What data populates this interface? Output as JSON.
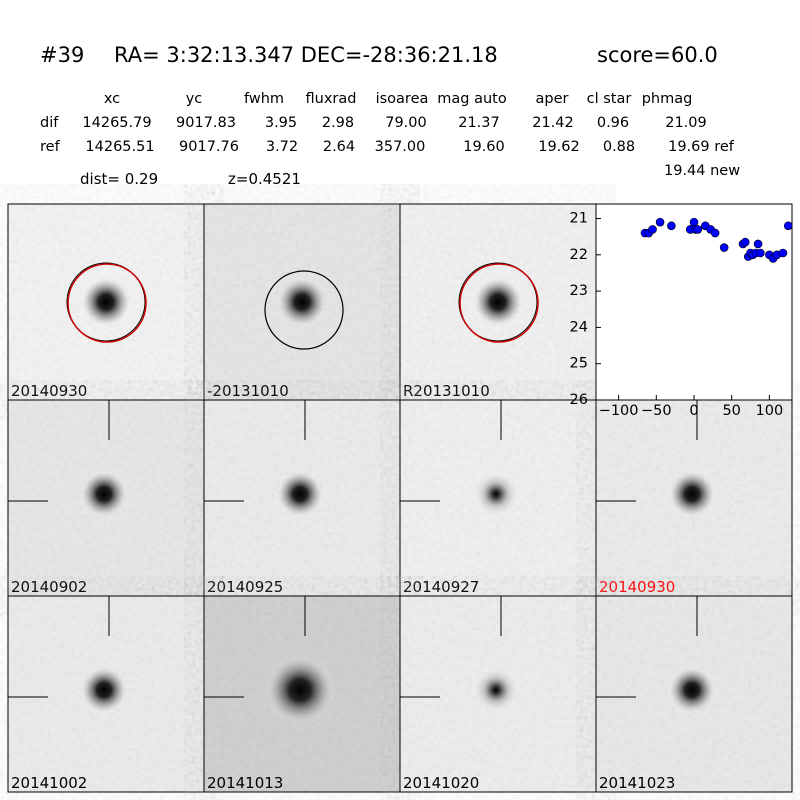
{
  "header": {
    "id": "#39",
    "coords": "RA= 3:32:13.347 DEC=-28:36:21.18",
    "score": "score=60.0"
  },
  "table": {
    "columns": [
      "xc",
      "yc",
      "fwhm",
      "fluxrad",
      "isoarea",
      "mag auto",
      "aper",
      "cl star",
      "phmag"
    ],
    "rows": [
      {
        "label": "dif",
        "values": [
          "14265.79",
          "9017.83",
          "3.95",
          "2.98",
          "79.00",
          "21.37",
          "21.42",
          "0.96",
          "21.09"
        ]
      },
      {
        "label": "ref",
        "values": [
          "14265.51",
          "9017.76",
          "3.72",
          "2.64",
          "357.00",
          "19.60",
          "19.62",
          "0.88",
          "19.69 ref"
        ]
      }
    ],
    "new_mag": "19.44 new",
    "dist": "dist=  0.29",
    "z": "z=0.4521"
  },
  "stamps": [
    "20140930",
    "-20131010",
    "R20131010",
    "20140902",
    "20140925",
    "20140927",
    "20140930",
    "20141002",
    "20141013",
    "20141020",
    "20141023"
  ],
  "chart_data": {
    "type": "scatter",
    "color": "#0000ff",
    "xlim": [
      -130,
      130
    ],
    "ylim": [
      26,
      20.6
    ],
    "xticks": [
      {
        "value": -100,
        "label": "−100"
      },
      {
        "value": -50,
        "label": "−50"
      },
      0,
      50,
      100
    ],
    "yticks": [
      21,
      22,
      23,
      24,
      25,
      26
    ],
    "x": [
      -65,
      -60,
      -55,
      -45,
      -30,
      -5,
      0,
      2,
      5,
      15,
      22,
      28,
      40,
      65,
      68,
      72,
      75,
      78,
      82,
      85,
      88,
      100,
      105,
      110,
      118,
      125
    ],
    "values": [
      21.4,
      21.4,
      21.3,
      21.1,
      21.2,
      21.3,
      21.1,
      21.3,
      21.3,
      21.2,
      21.3,
      21.4,
      21.8,
      21.7,
      21.65,
      22.05,
      21.95,
      22.0,
      21.95,
      21.7,
      21.95,
      22.0,
      22.1,
      22.0,
      21.95,
      21.2
    ]
  }
}
